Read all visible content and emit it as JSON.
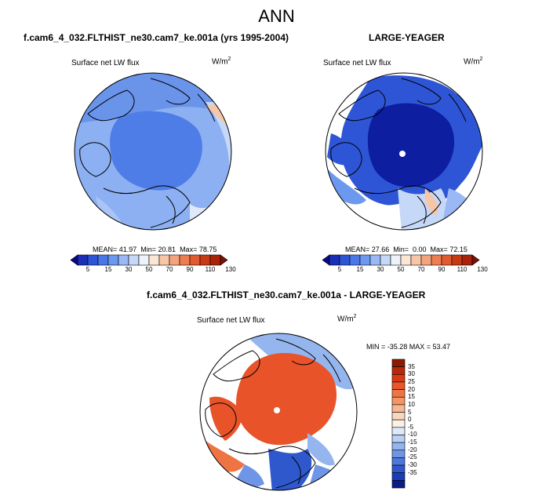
{
  "main_title": "ANN",
  "panels": [
    {
      "title": "f.cam6_4_032.FLTHIST_ne30.cam7_ke.001a (yrs 1995-2004)",
      "variable": "Surface net LW flux",
      "units_base": "W/m",
      "units_exp": "2",
      "stats": "MEAN= 41.97  Min= 20.81  Max= 78.75"
    },
    {
      "title": "LARGE-YEAGER",
      "variable": "Surface net LW flux",
      "units_base": "W/m",
      "units_exp": "2",
      "stats": "MEAN= 27.66  Min=  0.00  Max= 72.15"
    },
    {
      "title": "f.cam6_4_032.FLTHIST_ne30.cam7_ke.001a - LARGE-YEAGER",
      "variable": "Surface net LW flux",
      "units_base": "W/m",
      "units_exp": "2",
      "stats": "MIN = -35.28 MAX = 53.47"
    }
  ],
  "abs_colorbar": {
    "labels": [
      "5",
      "15",
      "30",
      "50",
      "70",
      "90",
      "110",
      "130"
    ],
    "colors": [
      "#08088c",
      "#1a2fb5",
      "#2d55d6",
      "#4a77e8",
      "#6c98f0",
      "#9ab8f5",
      "#c6d8f8",
      "#eef3fb",
      "#fbe6d6",
      "#f7c6a6",
      "#f3a47c",
      "#ec7e52",
      "#e15a30",
      "#c83a14",
      "#a9220a",
      "#7e1005"
    ]
  },
  "diff_colorbar": {
    "labels": [
      "35",
      "30",
      "25",
      "20",
      "15",
      "10",
      "5",
      "0",
      "-5",
      "-10",
      "-15",
      "-20",
      "-25",
      "-30",
      "-35"
    ],
    "colors": [
      "#8e1a05",
      "#b8280a",
      "#d93a14",
      "#e8562a",
      "#ef7443",
      "#f39564",
      "#f6b68e",
      "#fad6bc",
      "#fdf0e4",
      "#dde8f8",
      "#b9d0f4",
      "#94b5ee",
      "#6f96e6",
      "#4d78dc",
      "#2f58cc",
      "#1a3cb4",
      "#0a1e8a"
    ]
  },
  "colors": {
    "arctic_model": "#4f7de8",
    "arctic_obs": "#0d1ea0",
    "diff_arctic": "#e8532a"
  }
}
